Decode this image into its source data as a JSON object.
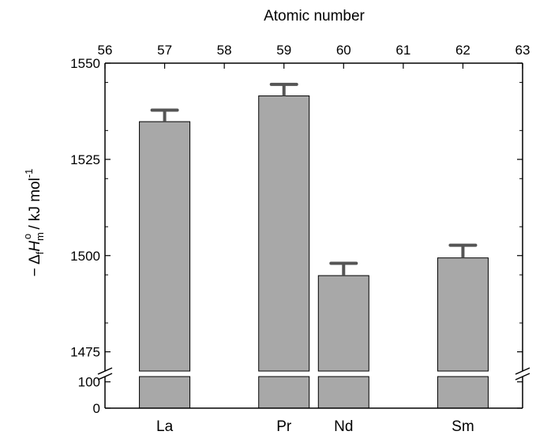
{
  "chart_data": {
    "type": "bar",
    "categories": [
      "La",
      "Pr",
      "Nd",
      "Sm"
    ],
    "x": [
      57,
      59,
      60,
      62
    ],
    "values": [
      1534.8,
      1541.5,
      1494.8,
      1499.4
    ],
    "error_plus": [
      3.0,
      3.0,
      3.2,
      3.3
    ],
    "error_minus": [
      0,
      0,
      0,
      0
    ],
    "xlabel_top": "Atomic number",
    "xlim_top": [
      56,
      63
    ],
    "x_ticks_top": [
      "56",
      "57",
      "58",
      "59",
      "60",
      "61",
      "62",
      "63"
    ],
    "ylabel": {
      "prefix": "− Δ",
      "sub_f": "f",
      "italic": "H",
      "sub_m": "m",
      "sup_o": "o",
      "unit": " / kJ mol",
      "sup_unit": "-1"
    },
    "ylim_upper": [
      1470,
      1550
    ],
    "y_ticks_upper": [
      "1475",
      "1500",
      "1525",
      "1550"
    ],
    "ylim_lower": [
      0,
      120
    ],
    "y_ticks_lower": [
      "0",
      "100"
    ],
    "axis_break": true,
    "grid": false,
    "bar_color": "#a8a8a8",
    "error_color": "#555555",
    "edge_color": "#000000"
  }
}
